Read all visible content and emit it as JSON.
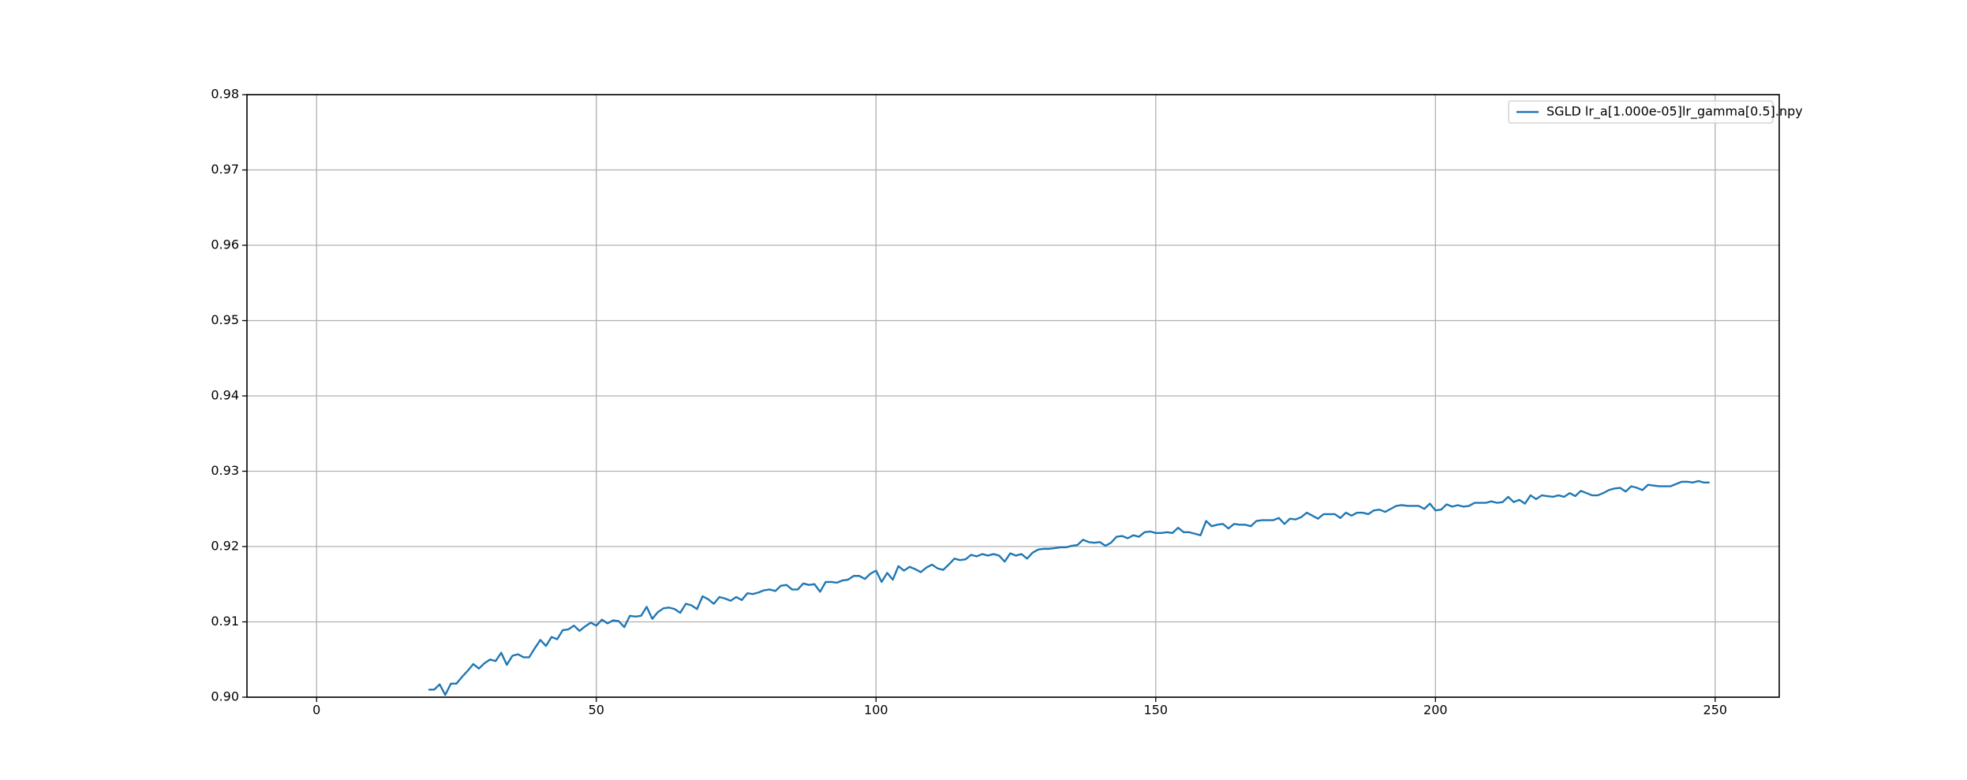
{
  "chart_data": {
    "type": "line",
    "x": [
      20,
      21,
      22,
      23,
      24,
      25,
      26,
      27,
      28,
      29,
      30,
      31,
      32,
      33,
      34,
      35,
      36,
      37,
      38,
      39,
      40,
      41,
      42,
      43,
      44,
      45,
      46,
      47,
      48,
      49,
      50,
      51,
      52,
      53,
      54,
      55,
      56,
      57,
      58,
      59,
      60,
      61,
      62,
      63,
      64,
      65,
      66,
      67,
      68,
      69,
      70,
      71,
      72,
      73,
      74,
      75,
      76,
      77,
      78,
      79,
      80,
      81,
      82,
      83,
      84,
      85,
      86,
      87,
      88,
      89,
      90,
      91,
      92,
      93,
      94,
      95,
      96,
      97,
      98,
      99,
      100,
      101,
      102,
      103,
      104,
      105,
      106,
      107,
      108,
      109,
      110,
      111,
      112,
      113,
      114,
      115,
      116,
      117,
      118,
      119,
      120,
      121,
      122,
      123,
      124,
      125,
      126,
      127,
      128,
      129,
      130,
      131,
      132,
      133,
      134,
      135,
      136,
      137,
      138,
      139,
      140,
      141,
      142,
      143,
      144,
      145,
      146,
      147,
      148,
      149,
      150,
      151,
      152,
      153,
      154,
      155,
      156,
      157,
      158,
      159,
      160,
      161,
      162,
      163,
      164,
      165,
      166,
      167,
      168,
      169,
      170,
      171,
      172,
      173,
      174,
      175,
      176,
      177,
      178,
      179,
      180,
      181,
      182,
      183,
      184,
      185,
      186,
      187,
      188,
      189,
      190,
      191,
      192,
      193,
      194,
      195,
      196,
      197,
      198,
      199,
      200,
      201,
      202,
      203,
      204,
      205,
      206,
      207,
      208,
      209,
      210,
      211,
      212,
      213,
      214,
      215,
      216,
      217,
      218,
      219,
      220,
      221,
      222,
      223,
      224,
      225,
      226,
      227,
      228,
      229,
      230,
      231,
      232,
      233,
      234,
      235,
      236,
      237,
      238,
      239,
      240,
      241,
      242,
      243,
      244,
      245,
      246,
      247,
      248,
      249
    ],
    "series": [
      {
        "name": "SGLD lr_a[1.000e-05]lr_gamma[0.5].npy",
        "color": "#1f77b4",
        "values": [
          0.901,
          0.901,
          0.9017,
          0.9003,
          0.9018,
          0.9018,
          0.9027,
          0.9035,
          0.9044,
          0.9038,
          0.9045,
          0.905,
          0.9048,
          0.9059,
          0.9043,
          0.9055,
          0.9057,
          0.9053,
          0.9053,
          0.9065,
          0.9076,
          0.9068,
          0.908,
          0.9077,
          0.9089,
          0.909,
          0.9095,
          0.9088,
          0.9094,
          0.9099,
          0.9095,
          0.9103,
          0.9098,
          0.9102,
          0.9101,
          0.9093,
          0.9108,
          0.9107,
          0.9108,
          0.912,
          0.9104,
          0.9113,
          0.9118,
          0.9119,
          0.9117,
          0.9112,
          0.9124,
          0.9122,
          0.9117,
          0.9134,
          0.913,
          0.9124,
          0.9133,
          0.9131,
          0.9128,
          0.9133,
          0.9129,
          0.9138,
          0.9137,
          0.9139,
          0.9142,
          0.9143,
          0.9141,
          0.9148,
          0.9149,
          0.9143,
          0.9143,
          0.9151,
          0.9149,
          0.915,
          0.914,
          0.9153,
          0.9153,
          0.9152,
          0.9155,
          0.9156,
          0.9161,
          0.9161,
          0.9157,
          0.9164,
          0.9168,
          0.9153,
          0.9165,
          0.9156,
          0.9174,
          0.9168,
          0.9173,
          0.917,
          0.9166,
          0.9172,
          0.9176,
          0.9171,
          0.9169,
          0.9176,
          0.9184,
          0.9182,
          0.9183,
          0.9189,
          0.9187,
          0.919,
          0.9188,
          0.919,
          0.9188,
          0.918,
          0.9191,
          0.9188,
          0.919,
          0.9184,
          0.9192,
          0.9196,
          0.9197,
          0.9197,
          0.9198,
          0.9199,
          0.9199,
          0.9201,
          0.9202,
          0.9209,
          0.9206,
          0.9205,
          0.9206,
          0.9201,
          0.9205,
          0.9213,
          0.9214,
          0.9211,
          0.9215,
          0.9213,
          0.9219,
          0.922,
          0.9218,
          0.9218,
          0.9219,
          0.9218,
          0.9225,
          0.9219,
          0.9219,
          0.9217,
          0.9215,
          0.9234,
          0.9227,
          0.9229,
          0.923,
          0.9224,
          0.923,
          0.9229,
          0.9229,
          0.9227,
          0.9234,
          0.9235,
          0.9235,
          0.9235,
          0.9238,
          0.923,
          0.9237,
          0.9236,
          0.9239,
          0.9245,
          0.9241,
          0.9237,
          0.9243,
          0.9243,
          0.9243,
          0.9238,
          0.9245,
          0.9241,
          0.9245,
          0.9245,
          0.9243,
          0.9248,
          0.9249,
          0.9246,
          0.925,
          0.9254,
          0.9255,
          0.9254,
          0.9254,
          0.9254,
          0.925,
          0.9257,
          0.9248,
          0.9249,
          0.9256,
          0.9253,
          0.9255,
          0.9253,
          0.9254,
          0.9258,
          0.9258,
          0.9258,
          0.926,
          0.9258,
          0.9259,
          0.9266,
          0.9259,
          0.9262,
          0.9257,
          0.9268,
          0.9263,
          0.9268,
          0.9267,
          0.9266,
          0.9268,
          0.9266,
          0.9271,
          0.9267,
          0.9274,
          0.9271,
          0.9268,
          0.9268,
          0.9271,
          0.9275,
          0.9277,
          0.9278,
          0.9273,
          0.928,
          0.9278,
          0.9275,
          0.9282,
          0.9281,
          0.928,
          0.928,
          0.928,
          0.9283,
          0.9286,
          0.9286,
          0.9285,
          0.9287,
          0.9285,
          0.9285
        ]
      }
    ],
    "xlim": [
      -12.45,
      261.45
    ],
    "xticks": [
      0,
      50,
      100,
      150,
      200,
      250
    ],
    "ylim": [
      0.9,
      0.98
    ],
    "yticks": [
      {
        "value": 0.9,
        "label": "0.90"
      },
      0.91,
      0.92,
      0.93,
      0.94,
      0.95,
      0.96,
      0.97,
      0.98
    ],
    "grid": true,
    "legend": "upper right"
  }
}
